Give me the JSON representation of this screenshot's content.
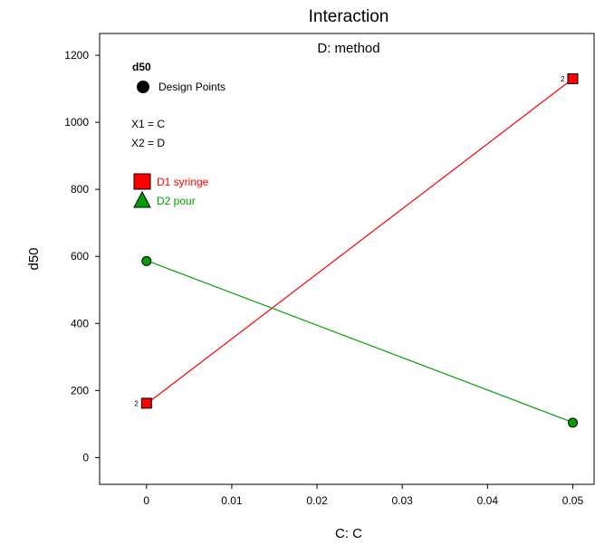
{
  "chart_data": {
    "type": "line",
    "title": "Interaction",
    "subtitle": "D: method",
    "xlabel": "C: C",
    "ylabel": "d50",
    "xlim": [
      -0.0055,
      0.0525
    ],
    "ylim": [
      -80,
      1265
    ],
    "x_ticks": [
      "0",
      "0.01",
      "0.02",
      "0.03",
      "0.04",
      "0.05"
    ],
    "x_tick_values": [
      0,
      0.01,
      0.02,
      0.03,
      0.04,
      0.05
    ],
    "y_ticks": [
      "0",
      "200",
      "400",
      "600",
      "800",
      "1000",
      "1200"
    ],
    "y_tick_values": [
      0,
      200,
      400,
      600,
      800,
      1000,
      1200
    ],
    "grid": false,
    "legend_placement": "top-left",
    "response_label": "d50",
    "design_points_label": "Design Points",
    "factor_x1": "X1 = C",
    "factor_x2": "X2 = D",
    "replicate_count_label": "2",
    "series": [
      {
        "name": "D1 syringe",
        "color": "#ff0000",
        "marker": "square",
        "x": [
          0,
          0.05
        ],
        "y": [
          160,
          1130
        ]
      },
      {
        "name": "D2 pour",
        "color": "#00a000",
        "marker": "triangle",
        "x": [
          0,
          0.05
        ],
        "y": [
          588,
          105
        ]
      }
    ],
    "design_points": [
      {
        "series": 0,
        "x": 0,
        "y": 162,
        "replicates": "2"
      },
      {
        "series": 0,
        "x": 0.05,
        "y": 1130,
        "replicates": "2"
      },
      {
        "series": 1,
        "x": 0,
        "y": 586,
        "replicates": ""
      },
      {
        "series": 1,
        "x": 0.05,
        "y": 104,
        "replicates": ""
      }
    ]
  }
}
